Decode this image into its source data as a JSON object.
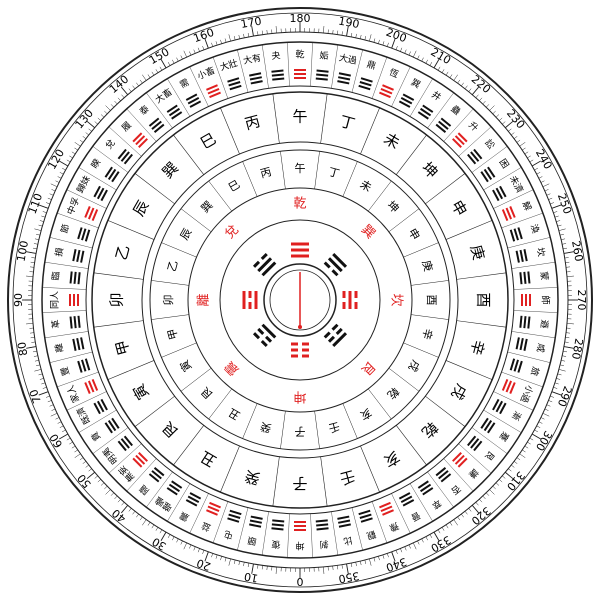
{
  "compass": {
    "degree_labels": [
      0,
      10,
      20,
      30,
      40,
      50,
      60,
      70,
      80,
      90,
      100,
      110,
      120,
      130,
      140,
      150,
      160,
      170,
      180,
      190,
      200,
      210,
      220,
      230,
      240,
      250,
      260,
      270,
      280,
      290,
      300,
      310,
      320,
      330,
      340,
      350
    ],
    "hexagrams": [
      "乾",
      "姤",
      "大過",
      "鼎",
      "恆",
      "巽",
      "井",
      "蠱",
      "升",
      "訟",
      "困",
      "未濟",
      "解",
      "渙",
      "坎",
      "蒙",
      "師",
      "遯",
      "咸",
      "旅",
      "小過",
      "漸",
      "蹇",
      "艮",
      "謙",
      "否",
      "萃",
      "晉",
      "豫",
      "觀",
      "比",
      "剝",
      "坤",
      "復",
      "頤",
      "屯",
      "益",
      "震",
      "噬嗑",
      "隨",
      "無妄",
      "明夷",
      "賁",
      "既濟",
      "家人",
      "豐",
      "離",
      "革",
      "同人",
      "臨",
      "損",
      "節",
      "中孚",
      "歸妹",
      "睽",
      "兌",
      "履",
      "泰",
      "大畜",
      "需",
      "小畜",
      "大壯",
      "大有",
      "夬"
    ],
    "mountains": [
      "子",
      "癸",
      "丑",
      "艮",
      "寅",
      "甲",
      "卯",
      "乙",
      "辰",
      "巽",
      "巳",
      "丙",
      "午",
      "丁",
      "未",
      "坤",
      "申",
      "庚",
      "酉",
      "辛",
      "戌",
      "乾",
      "亥",
      "壬"
    ],
    "trigrams": [
      "坤",
      "震",
      "離",
      "兌",
      "乾",
      "巽",
      "坎",
      "艮"
    ],
    "mountain_color": "#000000",
    "trigram_color": "#e02020",
    "needle_color": "#e02020"
  }
}
